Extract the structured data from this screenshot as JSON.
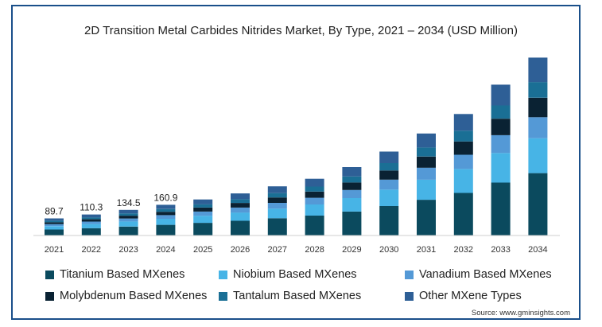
{
  "chart_data": {
    "type": "bar",
    "stacked": true,
    "title": "2D Transition Metal Carbides Nitrides Market, By Type, 2021 – 2034 (USD Million)",
    "xlabel": "",
    "ylabel": "",
    "categories": [
      "2021",
      "2022",
      "2023",
      "2024",
      "2025",
      "2026",
      "2027",
      "2028",
      "2029",
      "2030",
      "2031",
      "2032",
      "2033",
      "2034"
    ],
    "totals_labels": {
      "2021": "89.7",
      "2022": "110.3",
      "2023": "134.5",
      "2024": "160.9"
    },
    "series": [
      {
        "name": "Titanium Based MXenes",
        "color": "#0b4a5e",
        "values": [
          31.3,
          38.5,
          46.9,
          56.1,
          66.3,
          77.3,
          90.4,
          104.3,
          125.8,
          154.4,
          187.6,
          223.5,
          277.5,
          327.3
        ]
      },
      {
        "name": "Niobium Based MXenes",
        "color": "#47b4e6",
        "values": [
          17.7,
          21.7,
          26.5,
          31.7,
          37.2,
          43.3,
          50.7,
          58.4,
          70.5,
          86.4,
          105.0,
          125.1,
          155.4,
          183.1
        ]
      },
      {
        "name": "Vanadium Based MXenes",
        "color": "#5499d6",
        "values": [
          10.6,
          13.0,
          15.9,
          19.0,
          22.3,
          26.1,
          30.4,
          35.2,
          42.5,
          52.1,
          63.3,
          75.3,
          93.4,
          110.3
        ]
      },
      {
        "name": "Molybdenum Based MXenes",
        "color": "#0a2233",
        "values": [
          9.8,
          12.0,
          14.7,
          17.5,
          20.7,
          24.1,
          28.2,
          32.5,
          39.2,
          48.1,
          58.3,
          69.6,
          86.4,
          101.8
        ]
      },
      {
        "name": "Tantalum Based MXenes",
        "color": "#1a6f95",
        "values": [
          8.0,
          9.8,
          12.0,
          14.3,
          16.7,
          19.5,
          22.8,
          26.3,
          31.7,
          38.9,
          47.3,
          56.3,
          69.9,
          82.4
        ]
      },
      {
        "name": "Other MXene Types",
        "color": "#2e5f96",
        "values": [
          12.3,
          15.3,
          18.5,
          22.3,
          26.0,
          30.3,
          35.4,
          40.9,
          49.3,
          60.5,
          73.5,
          87.6,
          108.8,
          128.2
        ]
      }
    ],
    "ylim": [
      0,
      1000
    ],
    "grid": false,
    "legend_position": "bottom"
  },
  "source_text": "Source: www.gminsights.com"
}
